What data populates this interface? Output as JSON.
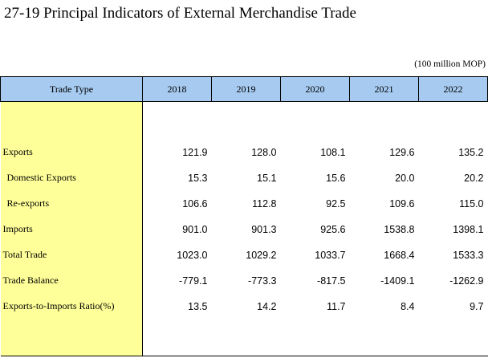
{
  "page": {
    "title": "27-19  Principal Indicators of External Merchandise Trade",
    "unit": "(100 million MOP)"
  },
  "table": {
    "header": {
      "trade_type": "Trade Type",
      "years": [
        "2018",
        "2019",
        "2020",
        "2021",
        "2022"
      ]
    },
    "rows": [
      {
        "label": "Exports",
        "values": [
          "121.9",
          "128.0",
          "108.1",
          "129.6",
          "135.2"
        ]
      },
      {
        "label": "Domestic Exports",
        "values": [
          "15.3",
          "15.1",
          "15.6",
          "20.0",
          "20.2"
        ]
      },
      {
        "label": "Re-exports",
        "values": [
          "106.6",
          "112.8",
          "92.5",
          "109.6",
          "115.0"
        ]
      },
      {
        "label": "Imports",
        "values": [
          "901.0",
          "901.3",
          "925.6",
          "1538.8",
          "1398.1"
        ]
      },
      {
        "label": "Total Trade",
        "values": [
          "1023.0",
          "1029.2",
          "1033.7",
          "1668.4",
          "1533.3"
        ]
      },
      {
        "label": "Trade Balance",
        "values": [
          "-779.1",
          "-773.3",
          "-817.5",
          "-1409.1",
          "-1262.9"
        ]
      },
      {
        "label": "Exports-to-Imports Ratio(%)",
        "values": [
          "13.5",
          "14.2",
          "11.7",
          "8.4",
          "9.7"
        ]
      }
    ]
  },
  "colors": {
    "header_bg": "#a6caf0",
    "label_col_bg": "#ffff99"
  }
}
